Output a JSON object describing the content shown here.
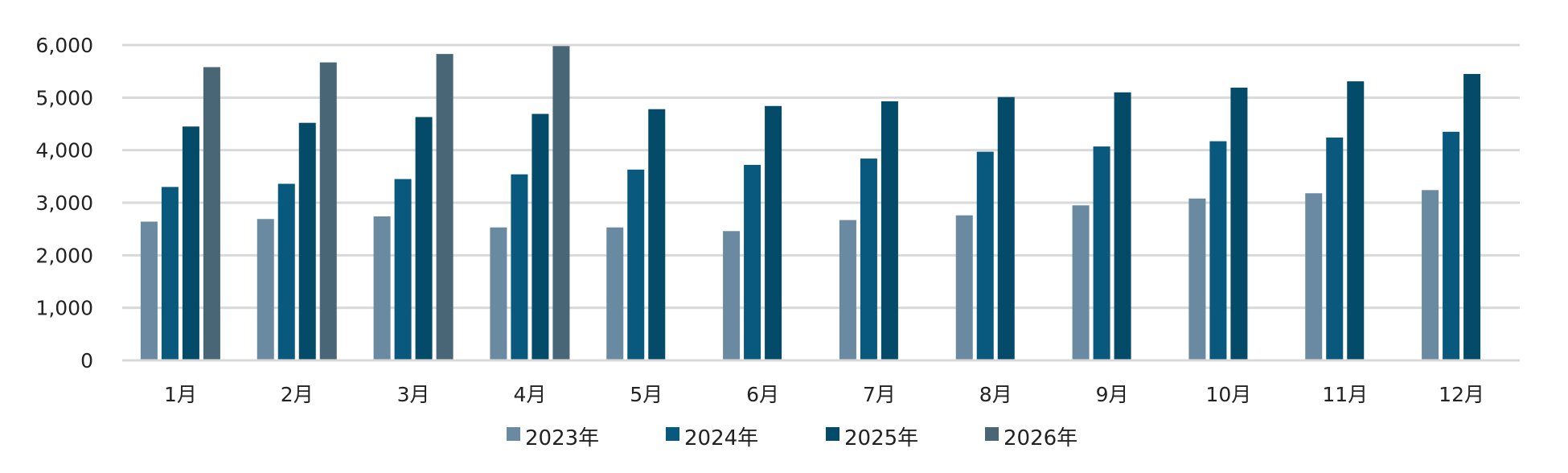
{
  "chart_data": {
    "type": "bar",
    "categories": [
      "1月",
      "2月",
      "3月",
      "4月",
      "5月",
      "6月",
      "7月",
      "8月",
      "9月",
      "10月",
      "11月",
      "12月"
    ],
    "series": [
      {
        "name": "2023年",
        "color": "#6a8aa1",
        "values": [
          2640,
          2690,
          2740,
          2530,
          2530,
          2460,
          2670,
          2760,
          2950,
          3080,
          3180,
          3240
        ]
      },
      {
        "name": "2024年",
        "color": "#09597e",
        "values": [
          3300,
          3360,
          3450,
          3540,
          3630,
          3720,
          3840,
          3970,
          4070,
          4170,
          4240,
          4350
        ]
      },
      {
        "name": "2025年",
        "color": "#044b69",
        "values": [
          4450,
          4520,
          4630,
          4690,
          4780,
          4840,
          4930,
          5010,
          5100,
          5190,
          5310,
          5450
        ]
      },
      {
        "name": "2026年",
        "color": "#486676",
        "values": [
          5580,
          5670,
          5830,
          5980,
          null,
          null,
          null,
          null,
          null,
          null,
          null,
          null
        ]
      }
    ],
    "yticks": [
      "0",
      "1,000",
      "2,000",
      "3,000",
      "4,000",
      "5,000",
      "6,000"
    ],
    "ylim": [
      0,
      6000
    ],
    "grid": true,
    "legend_position": "bottom",
    "title": "",
    "xlabel": "",
    "ylabel": ""
  }
}
